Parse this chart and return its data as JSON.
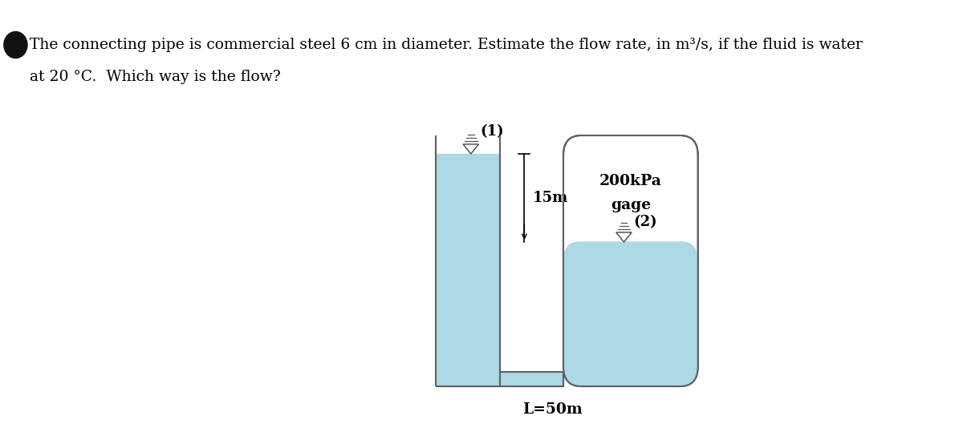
{
  "bg_color": "#ffffff",
  "water_color": "#add8e6",
  "wall_color": "#606060",
  "text_color": "#000000",
  "title_line1": "The connecting pipe is commercial steel 6 cm in diameter. Estimate the flow rate, in m³/s, if the fluid is water",
  "title_line2": "at 20 °C.  Which way is the flow?",
  "label_15m": "15m",
  "label_L50m": "L=50m",
  "label_200kPa": "200kPa",
  "label_gage": "gage",
  "label_1": "(1)",
  "label_2": "(2)",
  "bullet_color": "#111111",
  "font_size_title": 13.5,
  "font_size_diagram": 13
}
